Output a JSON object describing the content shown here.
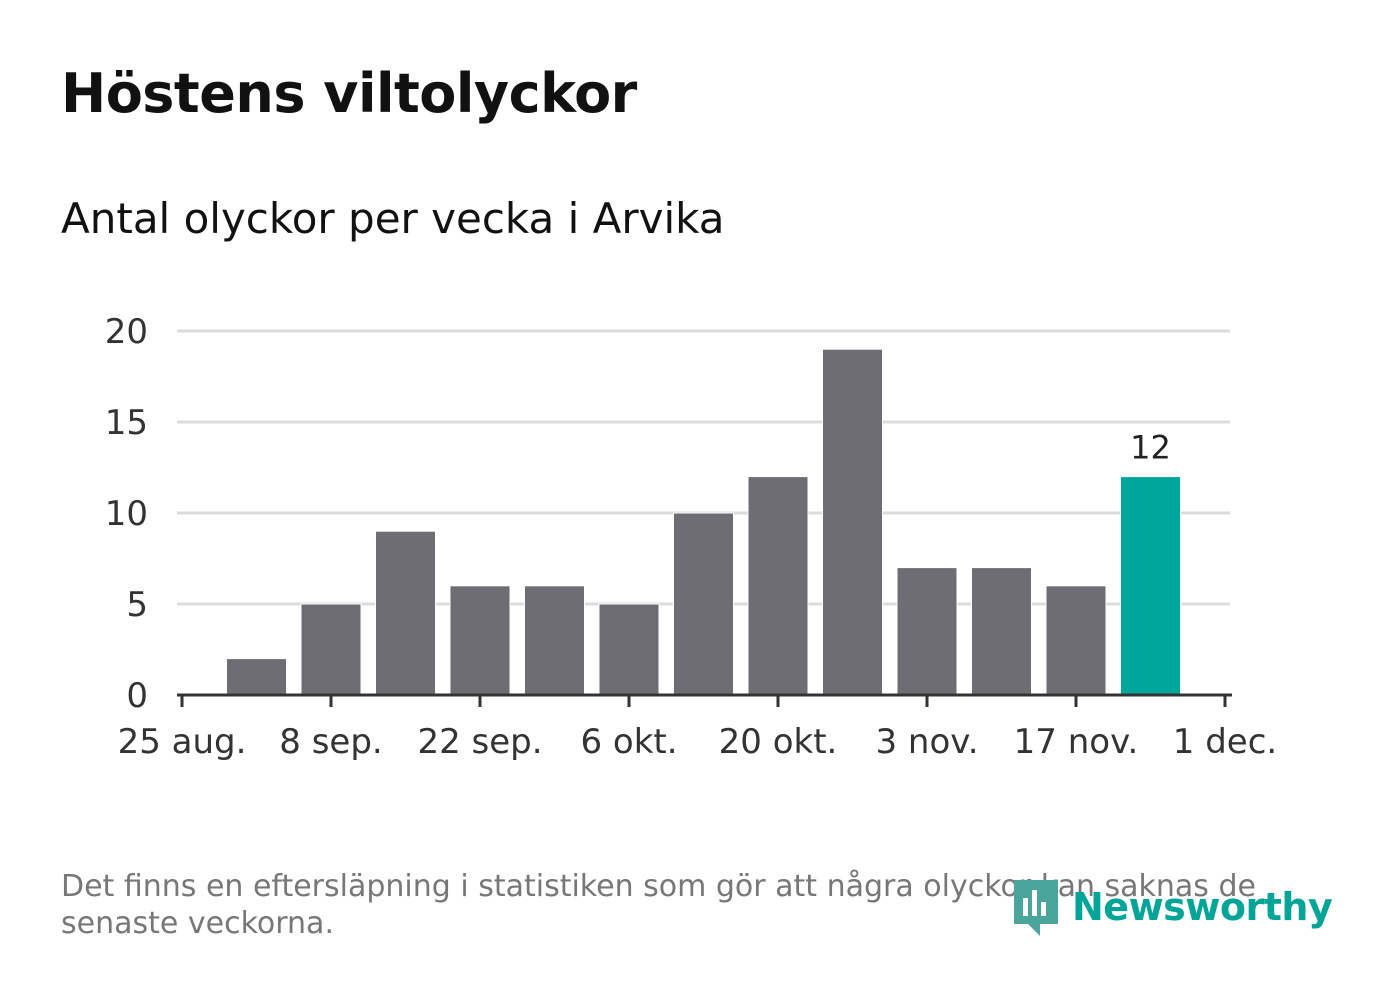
{
  "title": "Höstens viltolyckor",
  "subtitle": "Antal olyckor per vecka i Arvika",
  "note": "Det finns en eftersläpning i statistiken som gör att några olyckor kan saknas de senaste veckorna.",
  "logo": {
    "text": "Newsworthy",
    "icon": "newsworthy-logo-icon"
  },
  "colors": {
    "bar": "#6e6d73",
    "highlight": "#00a59b",
    "grid": "#dcdcdc",
    "axis": "#333333",
    "text": "#333333"
  },
  "chart_data": {
    "type": "bar",
    "x_tick_labels": [
      "25 aug.",
      "8 sep.",
      "22 sep.",
      "6 okt.",
      "20 okt.",
      "3 nov.",
      "17 nov.",
      "1 dec."
    ],
    "y_ticks": [
      0,
      5,
      10,
      15,
      20
    ],
    "ylim": [
      0,
      20
    ],
    "grid": true,
    "legend": "none",
    "values": [
      2,
      5,
      9,
      6,
      6,
      5,
      10,
      12,
      19,
      7,
      7,
      6,
      12
    ],
    "highlight_index": 12,
    "data_label": "12"
  }
}
